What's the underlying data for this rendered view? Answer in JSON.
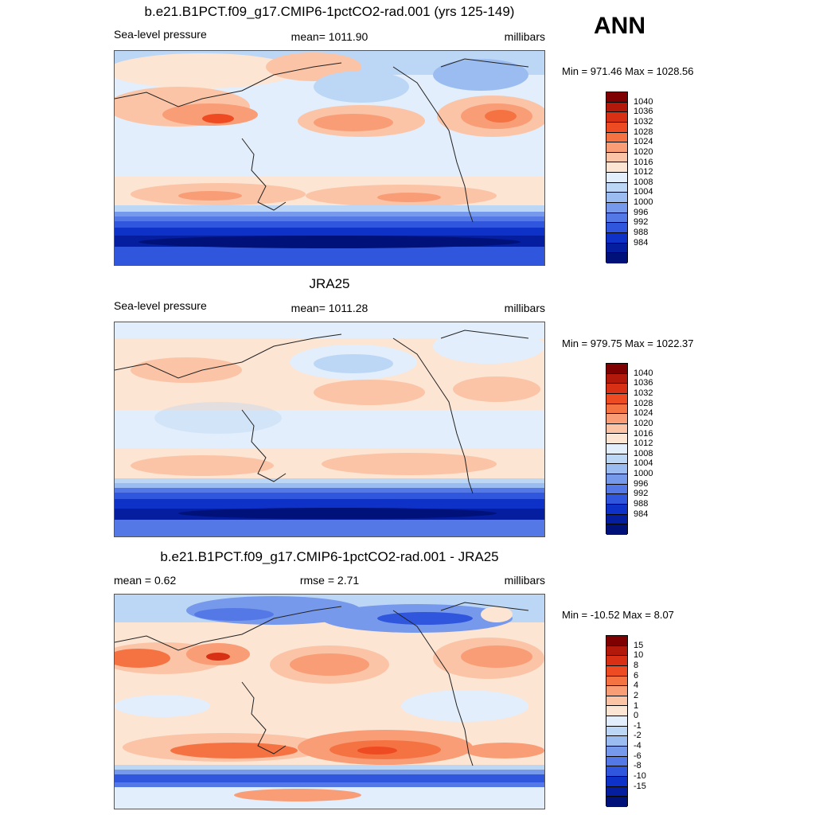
{
  "season": "ANN",
  "palette": {
    "pressure": [
      "#7f0000",
      "#b3190a",
      "#d73015",
      "#ef4b22",
      "#f57343",
      "#f89d76",
      "#fbc4a6",
      "#fde5d4",
      "#e2eefb",
      "#bcd6f6",
      "#9bbcf1",
      "#7799ec",
      "#5479e6",
      "#2f56dd",
      "#0e31c7",
      "#041e9f",
      "#00127a"
    ],
    "difference": [
      "#7f0000",
      "#b3190a",
      "#d73015",
      "#ef4b22",
      "#f57343",
      "#f89d76",
      "#fbc4a6",
      "#fde5d4",
      "#e2eefb",
      "#bcd6f6",
      "#9bbcf1",
      "#7799ec",
      "#5479e6",
      "#2f56dd",
      "#0e31c7",
      "#041e9f",
      "#00127a"
    ]
  },
  "panels": [
    {
      "title": "b.e21.B1PCT.f09_g17.CMIP6-1pctCO2-rad.001 (yrs 125-149)",
      "left_label": "Sea-level pressure",
      "center_label": "mean= 1011.90",
      "units": "millibars",
      "minmax": "Min = 971.46 Max = 1028.56",
      "colorbar_labels": [
        "1040",
        "1036",
        "1032",
        "1028",
        "1024",
        "1020",
        "1016",
        "1012",
        "1008",
        "1004",
        "1000",
        "996",
        "992",
        "988",
        "984"
      ]
    },
    {
      "title": "JRA25",
      "left_label": "Sea-level pressure",
      "center_label": "mean= 1011.28",
      "units": "millibars",
      "minmax": "Min = 979.75 Max = 1022.37",
      "colorbar_labels": [
        "1040",
        "1036",
        "1032",
        "1028",
        "1024",
        "1020",
        "1016",
        "1012",
        "1008",
        "1004",
        "1000",
        "996",
        "992",
        "988",
        "984"
      ]
    },
    {
      "title": "b.e21.B1PCT.f09_g17.CMIP6-1pctCO2-rad.001 - JRA25",
      "left_label": "mean =   0.62",
      "center_label": "rmse =   2.71",
      "units": "millibars",
      "minmax": "Min = -10.52 Max =   8.07",
      "colorbar_labels": [
        "15",
        "10",
        "8",
        "6",
        "4",
        "2",
        "1",
        "0",
        "-1",
        "-2",
        "-4",
        "-6",
        "-8",
        "-10",
        "-15"
      ]
    }
  ]
}
